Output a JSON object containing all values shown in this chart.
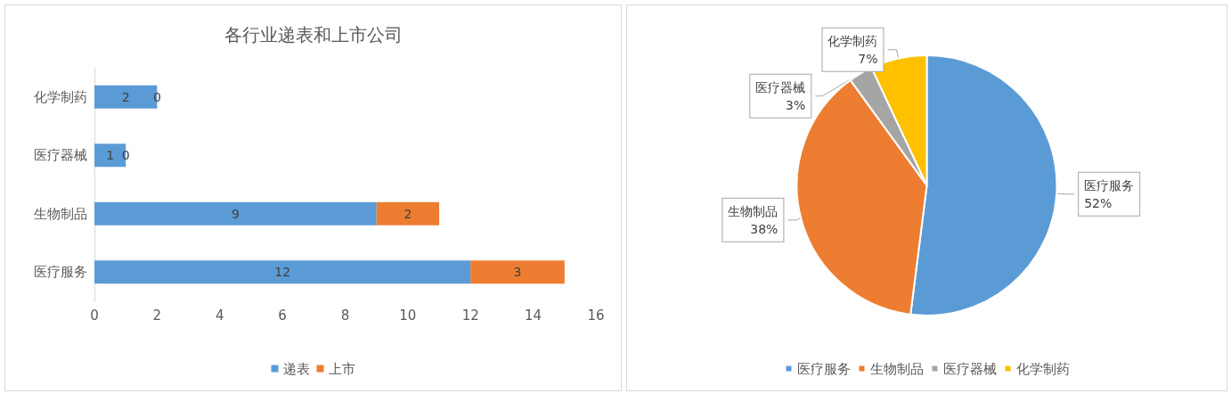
{
  "chart_data": [
    {
      "type": "bar",
      "title": "各行业递表和上市公司",
      "orientation": "horizontal",
      "stacked": true,
      "categories": [
        "化学制药",
        "医疗器械",
        "生物制品",
        "医疗服务"
      ],
      "series": [
        {
          "name": "递表",
          "color": "#5b9bd5",
          "values": [
            2,
            1,
            9,
            12
          ]
        },
        {
          "name": "上市",
          "color": "#ed7d31",
          "values": [
            0,
            0,
            2,
            3
          ]
        }
      ],
      "xlim": [
        0,
        16
      ],
      "xticks": [
        0,
        2,
        4,
        6,
        8,
        10,
        12,
        14,
        16
      ],
      "grid": false,
      "legend": "bottom",
      "data_labels": true
    },
    {
      "type": "pie",
      "categories": [
        "医疗服务",
        "生物制品",
        "医疗器械",
        "化学制药"
      ],
      "values": [
        52,
        38,
        3,
        7
      ],
      "colors": [
        "#5b9bd5",
        "#ed7d31",
        "#a5a5a5",
        "#ffc000"
      ],
      "value_labels": [
        "52%",
        "38%",
        "3%",
        "7%"
      ],
      "legend": "bottom"
    }
  ]
}
